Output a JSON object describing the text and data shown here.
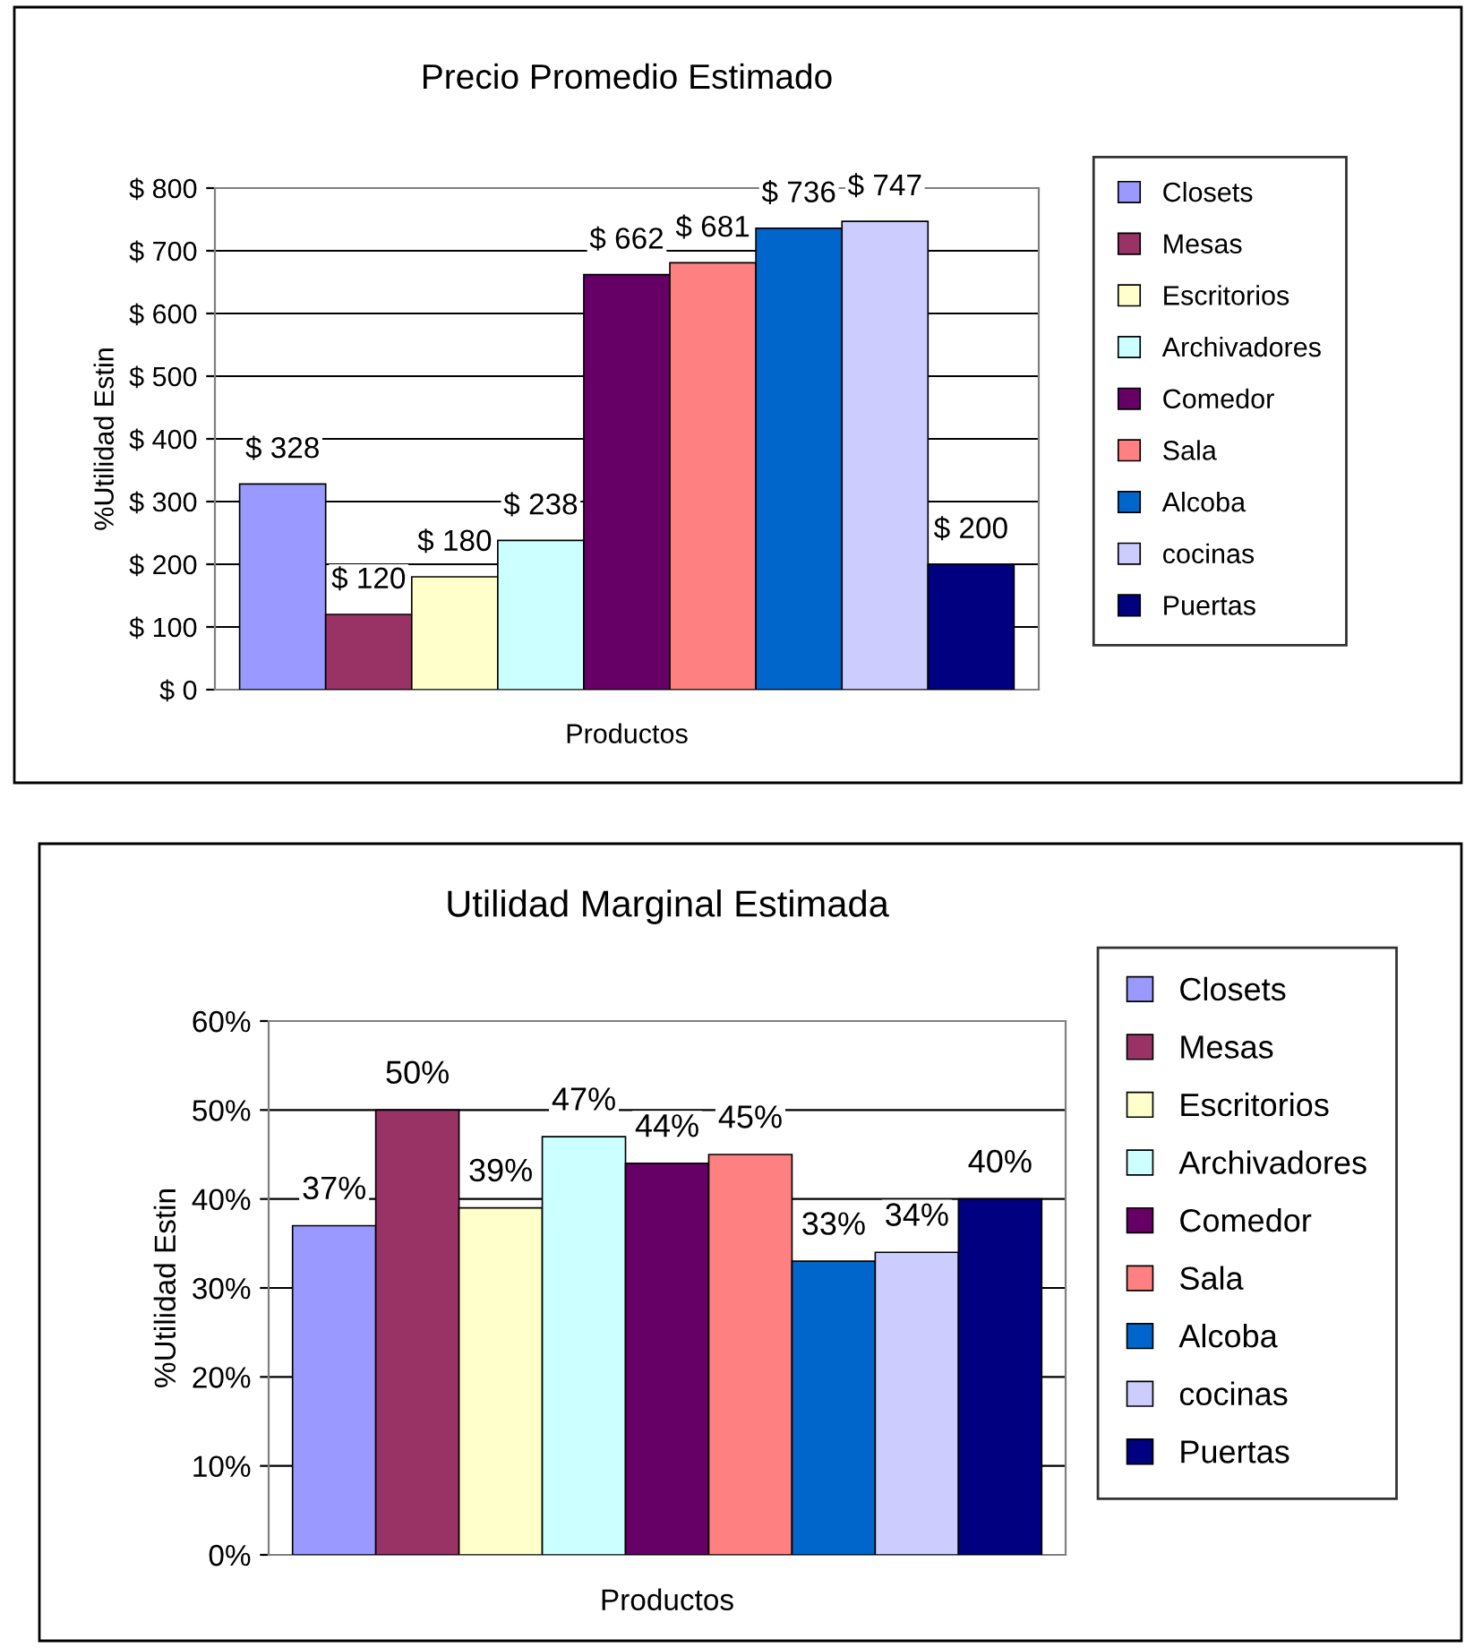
{
  "chart_data": [
    {
      "type": "bar",
      "title": "Precio Promedio Estimado",
      "xlabel": "Productos",
      "ylabel": "%Utilidad Estin",
      "categories": [
        null
      ],
      "ylim": [
        0,
        800
      ],
      "yticks": [
        {
          "value": 0,
          "label": "$ 0"
        },
        {
          "value": 100,
          "label": "$ 100"
        },
        {
          "value": 200,
          "label": "$ 200"
        },
        {
          "value": 300,
          "label": "$ 300"
        },
        {
          "value": 400,
          "label": "$ 400"
        },
        {
          "value": 500,
          "label": "$ 500"
        },
        {
          "value": 600,
          "label": "$ 600"
        },
        {
          "value": 700,
          "label": "$ 700"
        },
        {
          "value": 800,
          "label": "$ 800"
        }
      ],
      "grid": "y",
      "legend": "right",
      "series": [
        {
          "name": "Closets",
          "color": "#9999ff",
          "values": [
            328
          ],
          "value_labels": [
            "$ 328"
          ]
        },
        {
          "name": "Mesas",
          "color": "#993366",
          "values": [
            120
          ],
          "value_labels": [
            "$ 120"
          ]
        },
        {
          "name": "Escritorios",
          "color": "#ffffcc",
          "values": [
            180
          ],
          "value_labels": [
            "$ 180"
          ]
        },
        {
          "name": "Archivadores",
          "color": "#ccffff",
          "values": [
            238
          ],
          "value_labels": [
            "$ 238"
          ]
        },
        {
          "name": "Comedor",
          "color": "#660066",
          "values": [
            662
          ],
          "value_labels": [
            "$ 662"
          ]
        },
        {
          "name": "Sala",
          "color": "#ff8080",
          "values": [
            681
          ],
          "value_labels": [
            "$ 681"
          ]
        },
        {
          "name": "Alcoba",
          "color": "#0066cc",
          "values": [
            736
          ],
          "value_labels": [
            "$ 736"
          ]
        },
        {
          "name": "cocinas",
          "color": "#ccccff",
          "values": [
            747
          ],
          "value_labels": [
            "$ 747"
          ]
        },
        {
          "name": "Puertas",
          "color": "#000080",
          "values": [
            200
          ],
          "value_labels": [
            "$ 200"
          ]
        }
      ]
    },
    {
      "type": "bar",
      "title": "Utilidad Marginal Estimada",
      "xlabel": "Productos",
      "ylabel": "%Utilidad Estin",
      "categories": [
        null
      ],
      "ylim": [
        0,
        60
      ],
      "yticks": [
        {
          "value": 0,
          "label": "0%"
        },
        {
          "value": 10,
          "label": "10%"
        },
        {
          "value": 20,
          "label": "20%"
        },
        {
          "value": 30,
          "label": "30%"
        },
        {
          "value": 40,
          "label": "40%"
        },
        {
          "value": 50,
          "label": "50%"
        },
        {
          "value": 60,
          "label": "60%"
        }
      ],
      "grid": "y",
      "legend": "right",
      "series": [
        {
          "name": "Closets",
          "color": "#9999ff",
          "values": [
            37
          ],
          "value_labels": [
            "37%"
          ]
        },
        {
          "name": "Mesas",
          "color": "#993366",
          "values": [
            50
          ],
          "value_labels": [
            "50%"
          ]
        },
        {
          "name": "Escritorios",
          "color": "#ffffcc",
          "values": [
            39
          ],
          "value_labels": [
            "39%"
          ]
        },
        {
          "name": "Archivadores",
          "color": "#ccffff",
          "values": [
            47
          ],
          "value_labels": [
            "47%"
          ]
        },
        {
          "name": "Comedor",
          "color": "#660066",
          "values": [
            44
          ],
          "value_labels": [
            "44%"
          ]
        },
        {
          "name": "Sala",
          "color": "#ff8080",
          "values": [
            45
          ],
          "value_labels": [
            "45%"
          ]
        },
        {
          "name": "Alcoba",
          "color": "#0066cc",
          "values": [
            33
          ],
          "value_labels": [
            "33%"
          ]
        },
        {
          "name": "cocinas",
          "color": "#ccccff",
          "values": [
            34
          ],
          "value_labels": [
            "34%"
          ]
        },
        {
          "name": "Puertas",
          "color": "#000080",
          "values": [
            40
          ],
          "value_labels": [
            "40%"
          ]
        }
      ]
    }
  ]
}
